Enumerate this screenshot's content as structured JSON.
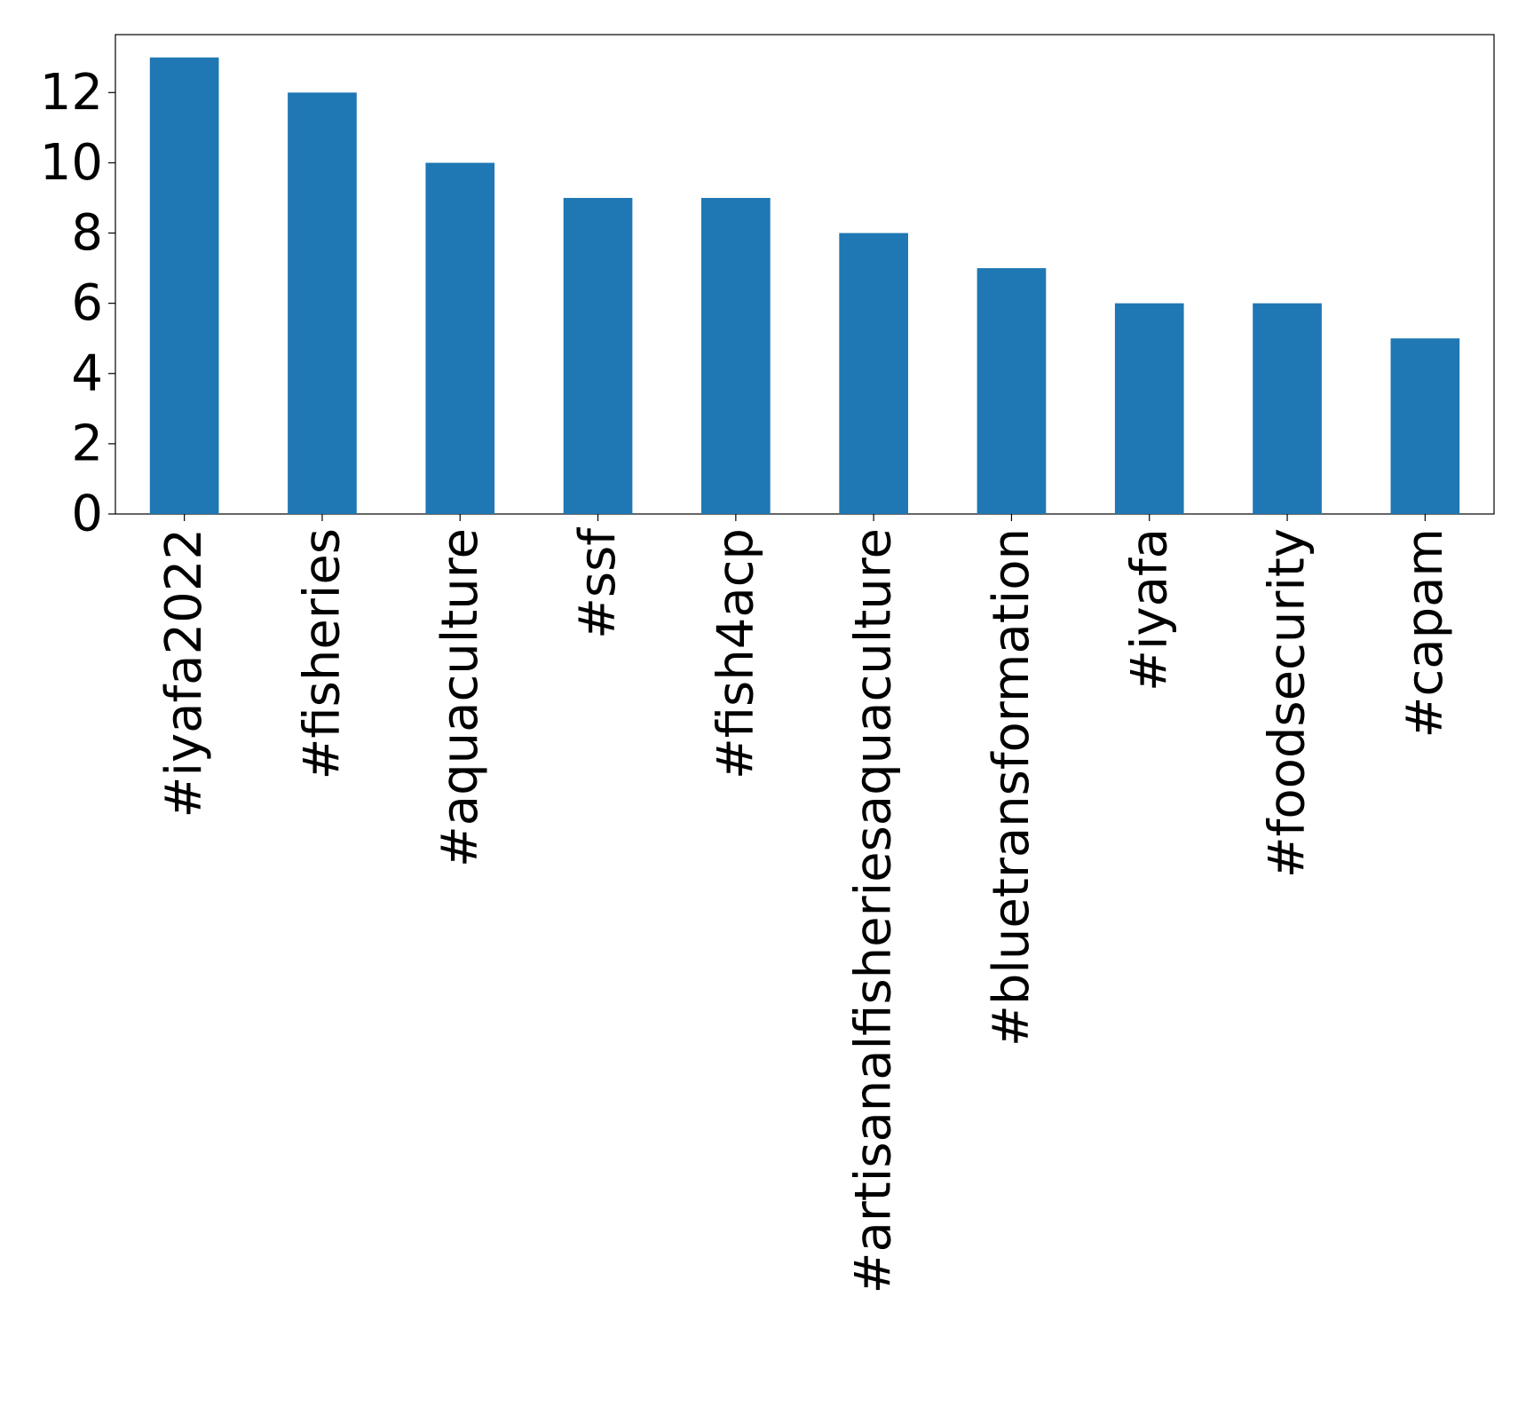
{
  "chart_data": {
    "type": "bar",
    "title": "",
    "xlabel": "",
    "ylabel": "",
    "categories": [
      "#iyafa2022",
      "#fisheries",
      "#aquaculture",
      "#ssf",
      "#fish4acp",
      "#artisanalfisheriesaquaculture",
      "#bluetransformation",
      "#iyafa",
      "#foodsecurity",
      "#capam"
    ],
    "values": [
      13,
      12,
      10,
      9,
      9,
      8,
      7,
      6,
      6,
      5
    ],
    "ylim": [
      0,
      13.65
    ],
    "yticks": [
      0,
      2,
      4,
      6,
      8,
      10,
      12
    ],
    "grid": false,
    "legend": "none",
    "bar_color": "#1f77b4"
  }
}
